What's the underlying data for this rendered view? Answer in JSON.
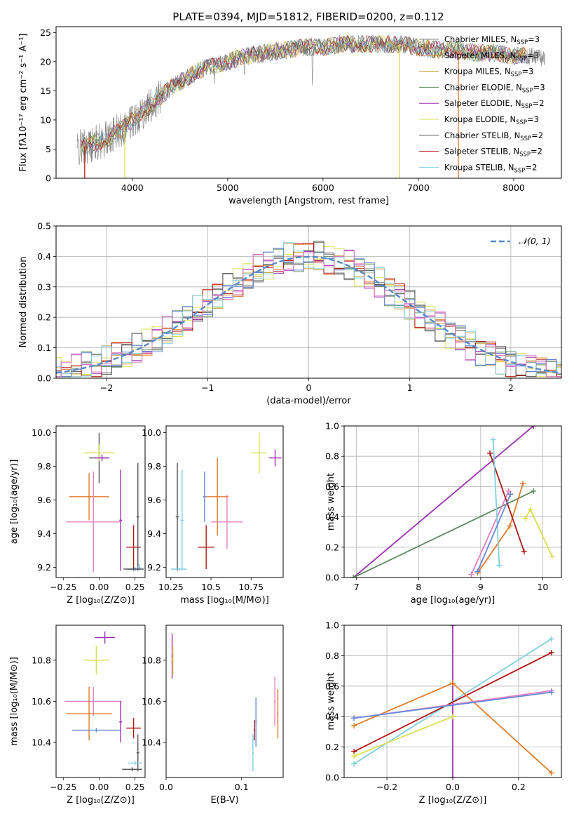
{
  "colors": {
    "chabrier_miles": "#808080",
    "salpeter_miles": "#e07b2a",
    "kroupa_miles": "#c8a040",
    "chabrier_elodie": "#5c8a5c",
    "salpeter_elodie": "#9b30b0",
    "kroupa_elodie": "#d8e050",
    "chabrier_stelib": "#555555",
    "salpeter_stelib": "#b01818",
    "kroupa_stelib": "#80d0e0",
    "blue_model": "#6688dd",
    "pink_model": "#e080c0",
    "gaussian": "#5588cc"
  },
  "chart_data": [
    {
      "type": "line",
      "title": "PLATE=0394, MJD=51812, FIBERID=0200, z=0.112",
      "xlabel": "wavelength [Angstrom, rest frame]",
      "ylabel": "Flux [fλ10⁻¹⁷ erg cm⁻² s⁻¹ A⁻¹]",
      "xlim": [
        3200,
        8500
      ],
      "ylim": [
        0,
        26
      ],
      "xticks": [
        4000,
        5000,
        6000,
        7000,
        8000
      ],
      "yticks": [
        0,
        5,
        10,
        15,
        20,
        25
      ],
      "grid": false,
      "legend_position": "right",
      "continuum": {
        "x": [
          3420,
          3500,
          3600,
          3700,
          3800,
          3900,
          4000,
          4100,
          4200,
          4300,
          4400,
          4500,
          4600,
          4700,
          4800,
          4900,
          5000,
          5200,
          5400,
          5600,
          5800,
          6000,
          6200,
          6400,
          6600,
          6800,
          7000,
          7200,
          7400,
          7600,
          7800,
          8000,
          8200,
          8330
        ],
        "y": [
          5,
          5.5,
          6,
          6.5,
          7.5,
          8.5,
          10,
          11.5,
          12.5,
          14,
          15.5,
          16.5,
          17.5,
          18.5,
          19,
          19.5,
          20,
          21,
          21.5,
          22,
          22.5,
          22.5,
          23,
          23,
          23,
          23,
          22.5,
          22,
          22,
          21.5,
          21.5,
          21,
          21,
          20.5
        ]
      },
      "series": [
        {
          "name": "Chabrier MILES, N_SSP=3",
          "color_key": "chabrier_miles"
        },
        {
          "name": "Salpeter MILES, N_SSP=3",
          "color_key": "salpeter_miles"
        },
        {
          "name": "Kroupa MILES, N_SSP=3",
          "color_key": "kroupa_miles"
        },
        {
          "name": "Chabrier ELODIE, N_SSP=3",
          "color_key": "chabrier_elodie"
        },
        {
          "name": "Salpeter ELODIE, N_SSP=2",
          "color_key": "salpeter_elodie"
        },
        {
          "name": "Kroupa ELODIE, N_SSP=3",
          "color_key": "kroupa_elodie"
        },
        {
          "name": "Chabrier STELIB, N_SSP=2",
          "color_key": "chabrier_stelib"
        },
        {
          "name": "Salpeter STELIB, N_SSP=2",
          "color_key": "salpeter_stelib"
        },
        {
          "name": "Kroupa STELIB, N_SSP=2",
          "color_key": "kroupa_stelib"
        }
      ],
      "legend": [
        {
          "base": "Chabrier MILES, N",
          "sub": "SSP",
          "tail": "=3",
          "color_key": "chabrier_miles"
        },
        {
          "base": "Salpeter MILES, N",
          "sub": "SSP",
          "tail": "=3",
          "color_key": "salpeter_miles"
        },
        {
          "base": "Kroupa MILES, N",
          "sub": "SSP",
          "tail": "=3",
          "color_key": "kroupa_miles"
        },
        {
          "base": "Chabrier ELODIE, N",
          "sub": "SSP",
          "tail": "=3",
          "color_key": "chabrier_elodie"
        },
        {
          "base": "Salpeter ELODIE, N",
          "sub": "SSP",
          "tail": "=2",
          "color_key": "salpeter_elodie"
        },
        {
          "base": "Kroupa ELODIE, N",
          "sub": "SSP",
          "tail": "=3",
          "color_key": "kroupa_elodie"
        },
        {
          "base": "Chabrier STELIB, N",
          "sub": "SSP",
          "tail": "=2",
          "color_key": "chabrier_stelib"
        },
        {
          "base": "Salpeter STELIB, N",
          "sub": "SSP",
          "tail": "=2",
          "color_key": "salpeter_stelib"
        },
        {
          "base": "Kroupa STELIB, N",
          "sub": "SSP",
          "tail": "=2",
          "color_key": "kroupa_stelib"
        }
      ],
      "drops": [
        {
          "x": 3500,
          "color_key": "salpeter_stelib"
        },
        {
          "x": 3920,
          "color_key": "kroupa_elodie"
        },
        {
          "x": 6800,
          "color_key": "kroupa_elodie"
        },
        {
          "x": 7420,
          "color_key": "salpeter_miles"
        }
      ]
    },
    {
      "type": "histogram",
      "xlabel": "(data-model)/error",
      "ylabel": "Normed distribution",
      "xlim": [
        -2.5,
        2.5
      ],
      "ylim": [
        0,
        0.5
      ],
      "xticks": [
        -2,
        -1,
        0,
        1,
        2
      ],
      "yticks": [
        0.0,
        0.1,
        0.2,
        0.3,
        0.4,
        0.5
      ],
      "grid": true,
      "legend": [
        {
          "name": "𝒩(0, 1)",
          "color_key": "gaussian"
        }
      ],
      "legend_position": "top-right",
      "gaussian": {
        "mean": 0,
        "sigma": 1
      },
      "bin_width": 0.1
    },
    {
      "type": "errorbar",
      "xlabel": "Z [log₁₀(Z/Z⊙)]",
      "ylabel": "age  [log₁₀(age/yr)]",
      "xlim": [
        -0.3,
        0.32
      ],
      "ylim": [
        9.14,
        10.04
      ],
      "xticks": [
        -0.25,
        0.0,
        0.25
      ],
      "xticklabels": [
        "−0.25",
        "0.00",
        "0.25"
      ],
      "yticks": [
        9.2,
        9.4,
        9.6,
        9.8,
        10.0
      ],
      "points": [
        {
          "x": 0.0,
          "y": 9.85,
          "xerr": 0.07,
          "yerr": 0.15,
          "color_key": "chabrier_stelib"
        },
        {
          "x": 0.0,
          "y": 9.88,
          "xerr": 0.11,
          "yerr": 0.05,
          "color_key": "kroupa_elodie"
        },
        {
          "x": 0.02,
          "y": 9.85,
          "xerr": 0.05,
          "yerr": 0.02,
          "color_key": "salpeter_elodie"
        },
        {
          "x": -0.07,
          "y": 9.62,
          "xerr": 0.14,
          "yerr": 0.14,
          "color_key": "salpeter_miles"
        },
        {
          "x": -0.04,
          "y": 9.47,
          "xerr": 0.19,
          "yerr": 0.3,
          "color_key": "pink_model"
        },
        {
          "x": 0.15,
          "y": 9.48,
          "xerr": 0.01,
          "yerr": 0.3,
          "color_key": "salpeter_elodie"
        },
        {
          "x": 0.24,
          "y": 9.32,
          "xerr": 0.05,
          "yerr": 0.13,
          "color_key": "salpeter_stelib"
        },
        {
          "x": 0.27,
          "y": 9.5,
          "xerr": 0.01,
          "yerr": 0.32,
          "color_key": "chabrier_stelib"
        },
        {
          "x": 0.25,
          "y": 9.19,
          "xerr": 0.05,
          "yerr": 0.01,
          "color_key": "blue_model"
        },
        {
          "x": 0.28,
          "y": 9.2,
          "xerr": 0.01,
          "yerr": 0.02,
          "color_key": "kroupa_stelib"
        },
        {
          "x": 0.24,
          "y": 9.19,
          "xerr": 0.07,
          "yerr": 0.01,
          "color_key": "chabrier_stelib"
        }
      ]
    },
    {
      "type": "errorbar",
      "xlabel": "mass [log₁₀(M/M⊙)]",
      "ylabel": "",
      "xlim": [
        10.22,
        10.95
      ],
      "ylim": [
        9.14,
        10.04
      ],
      "xticks": [
        10.25,
        10.5,
        10.75
      ],
      "yticks": [
        9.2,
        9.4,
        9.6,
        9.8,
        10.0
      ],
      "points": [
        {
          "x": 10.29,
          "y": 9.5,
          "xerr": 0.01,
          "yerr": 0.32,
          "color_key": "chabrier_stelib"
        },
        {
          "x": 10.3,
          "y": 9.19,
          "xerr": 0.05,
          "yerr": 0.01,
          "color_key": "kroupa_stelib"
        },
        {
          "x": 10.32,
          "y": 9.48,
          "xerr": 0.01,
          "yerr": 0.3,
          "color_key": "kroupa_stelib"
        },
        {
          "x": 10.47,
          "y": 9.32,
          "xerr": 0.05,
          "yerr": 0.13,
          "color_key": "salpeter_stelib"
        },
        {
          "x": 10.46,
          "y": 9.62,
          "xerr": 0.01,
          "yerr": 0.15,
          "color_key": "blue_model"
        },
        {
          "x": 10.54,
          "y": 9.62,
          "xerr": 0.07,
          "yerr": 0.23,
          "color_key": "salpeter_miles"
        },
        {
          "x": 10.6,
          "y": 9.47,
          "xerr": 0.1,
          "yerr": 0.16,
          "color_key": "pink_model"
        },
        {
          "x": 10.8,
          "y": 9.88,
          "xerr": 0.05,
          "yerr": 0.12,
          "color_key": "kroupa_elodie"
        },
        {
          "x": 10.9,
          "y": 9.85,
          "xerr": 0.04,
          "yerr": 0.05,
          "color_key": "salpeter_elodie"
        }
      ]
    },
    {
      "type": "line",
      "xlabel": "age  [log₁₀(age/yr)]",
      "ylabel": "mass weight",
      "xlim": [
        6.8,
        10.3
      ],
      "ylim": [
        0,
        1
      ],
      "xticks": [
        7,
        8,
        9,
        10
      ],
      "yticks": [
        0.0,
        0.2,
        0.4,
        0.6,
        0.8,
        1.0
      ],
      "grid": true,
      "series": [
        {
          "color_key": "salpeter_elodie",
          "x": [
            6.95,
            9.85
          ],
          "y": [
            0.0,
            1.0
          ]
        },
        {
          "color_key": "chabrier_elodie",
          "x": [
            6.95,
            9.85
          ],
          "y": [
            0.0,
            0.57
          ]
        },
        {
          "color_key": "kroupa_elodie",
          "x": [
            9.72,
            9.8,
            10.15
          ],
          "y": [
            0.39,
            0.45,
            0.14
          ]
        },
        {
          "color_key": "salpeter_miles",
          "x": [
            8.95,
            9.47,
            9.68
          ],
          "y": [
            0.03,
            0.34,
            0.62
          ]
        },
        {
          "color_key": "pink_model",
          "x": [
            8.85,
            9.45
          ],
          "y": [
            0.02,
            0.57
          ]
        },
        {
          "color_key": "salpeter_stelib",
          "x": [
            9.15,
            9.7
          ],
          "y": [
            0.82,
            0.17
          ]
        },
        {
          "color_key": "kroupa_stelib",
          "x": [
            9.2,
            9.3
          ],
          "y": [
            0.91,
            0.08
          ]
        },
        {
          "color_key": "blue_model",
          "x": [
            8.95,
            9.48
          ],
          "y": [
            0.04,
            0.55
          ]
        }
      ]
    },
    {
      "type": "errorbar",
      "xlabel": "Z [log₁₀(Z/Z⊙)]",
      "ylabel": "mass [log₁₀(M/M⊙)]",
      "xlim": [
        -0.3,
        0.32
      ],
      "ylim": [
        10.23,
        10.97
      ],
      "xticks": [
        -0.25,
        0.0,
        0.25
      ],
      "xticklabels": [
        "−0.25",
        "0.00",
        "0.25"
      ],
      "yticks": [
        10.4,
        10.6,
        10.8
      ],
      "points": [
        {
          "x": 0.04,
          "y": 10.91,
          "xerr": 0.07,
          "yerr": 0.03,
          "color_key": "salpeter_elodie"
        },
        {
          "x": -0.02,
          "y": 10.8,
          "xerr": 0.09,
          "yerr": 0.07,
          "color_key": "kroupa_elodie"
        },
        {
          "x": -0.04,
          "y": 10.6,
          "xerr": 0.2,
          "yerr": 0.07,
          "color_key": "pink_model"
        },
        {
          "x": -0.07,
          "y": 10.54,
          "xerr": 0.16,
          "yerr": 0.13,
          "color_key": "salpeter_miles"
        },
        {
          "x": 0.15,
          "y": 10.5,
          "xerr": 0.01,
          "yerr": 0.1,
          "color_key": "salpeter_elodie"
        },
        {
          "x": -0.02,
          "y": 10.46,
          "xerr": 0.17,
          "yerr": 0.01,
          "color_key": "blue_model"
        },
        {
          "x": 0.24,
          "y": 10.47,
          "xerr": 0.05,
          "yerr": 0.05,
          "color_key": "salpeter_stelib"
        },
        {
          "x": 0.27,
          "y": 10.35,
          "xerr": 0.01,
          "yerr": 0.09,
          "color_key": "chabrier_stelib"
        },
        {
          "x": 0.25,
          "y": 10.3,
          "xerr": 0.05,
          "yerr": 0.01,
          "color_key": "kroupa_stelib"
        },
        {
          "x": 0.23,
          "y": 10.27,
          "xerr": 0.07,
          "yerr": 0.01,
          "color_key": "chabrier_stelib"
        }
      ]
    },
    {
      "type": "errorbar",
      "xlabel": "E(B-V)",
      "ylabel": "",
      "xlim": [
        0,
        0.155
      ],
      "ylim": [
        10.23,
        10.97
      ],
      "xticks": [
        0.0,
        0.1
      ],
      "xticklabels": [
        "0.0",
        "0.1"
      ],
      "yticks": [
        10.4,
        10.6,
        10.8
      ],
      "points": [
        {
          "x": 0.008,
          "y": 10.82,
          "xerr": 0.001,
          "yerr": 0.11,
          "color_key": "salpeter_elodie"
        },
        {
          "x": 0.009,
          "y": 10.8,
          "xerr": 0.001,
          "yerr": 0.07,
          "color_key": "kroupa_elodie"
        },
        {
          "x": 0.115,
          "y": 10.35,
          "xerr": 0.001,
          "yerr": 0.09,
          "color_key": "kroupa_stelib"
        },
        {
          "x": 0.117,
          "y": 10.46,
          "xerr": 0.001,
          "yerr": 0.05,
          "color_key": "salpeter_stelib"
        },
        {
          "x": 0.119,
          "y": 10.5,
          "xerr": 0.001,
          "yerr": 0.12,
          "color_key": "blue_model"
        },
        {
          "x": 0.144,
          "y": 10.6,
          "xerr": 0.001,
          "yerr": 0.12,
          "color_key": "pink_model"
        },
        {
          "x": 0.148,
          "y": 10.54,
          "xerr": 0.001,
          "yerr": 0.12,
          "color_key": "salpeter_miles"
        }
      ]
    },
    {
      "type": "line",
      "xlabel": "Z [log₁₀(Z/Z⊙)]",
      "ylabel": "mass weight",
      "xlim": [
        -0.33,
        0.33
      ],
      "ylim": [
        0,
        1
      ],
      "xticks": [
        -0.2,
        0.0,
        0.2
      ],
      "xticklabels": [
        "−0.2",
        "0.0",
        "0.2"
      ],
      "yticks": [
        0.0,
        0.2,
        0.4,
        0.6,
        0.8,
        1.0
      ],
      "grid": true,
      "series": [
        {
          "color_key": "salpeter_elodie",
          "x": [
            0.0,
            0.0
          ],
          "y": [
            0.0,
            1.0
          ]
        },
        {
          "color_key": "kroupa_stelib",
          "x": [
            -0.3,
            0.3
          ],
          "y": [
            0.09,
            0.91
          ]
        },
        {
          "color_key": "salpeter_stelib",
          "x": [
            -0.3,
            0.3
          ],
          "y": [
            0.17,
            0.82
          ]
        },
        {
          "color_key": "salpeter_miles",
          "x": [
            -0.3,
            0.0,
            0.3
          ],
          "y": [
            0.34,
            0.62,
            0.03
          ]
        },
        {
          "color_key": "pink_model",
          "x": [
            -0.3,
            0.3
          ],
          "y": [
            0.39,
            0.57
          ]
        },
        {
          "color_key": "blue_model",
          "x": [
            -0.3,
            0.3
          ],
          "y": [
            0.39,
            0.56
          ]
        },
        {
          "color_key": "kroupa_elodie",
          "x": [
            -0.3,
            0.0
          ],
          "y": [
            0.14,
            0.4
          ]
        }
      ]
    }
  ]
}
